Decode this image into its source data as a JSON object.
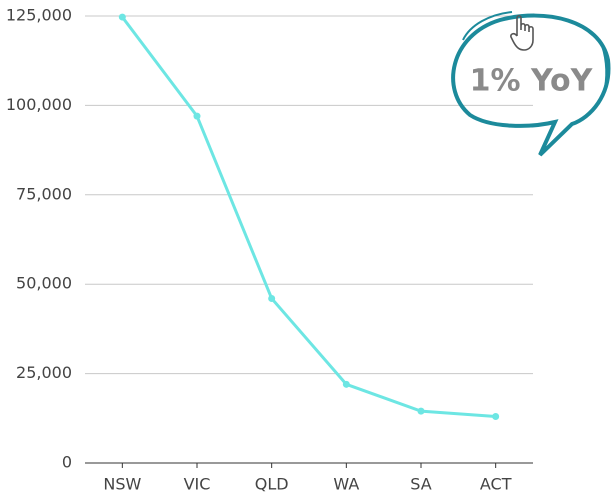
{
  "chart_data": {
    "type": "line",
    "categories": [
      "NSW",
      "VIC",
      "QLD",
      "WA",
      "SA",
      "ACT"
    ],
    "series": [
      {
        "name": "Value",
        "color": "#6de6e3",
        "values": [
          124700,
          97000,
          46000,
          22000,
          14500,
          13000
        ]
      }
    ],
    "ylim": [
      0,
      125000
    ],
    "yticks": [
      0,
      {
        "value": 25000,
        "label": "25,000"
      },
      {
        "value": 50000,
        "label": "50,000"
      },
      {
        "value": 75000,
        "label": "75,000"
      },
      {
        "value": 100000,
        "label": "100,000"
      },
      {
        "value": 125000,
        "label": "125,000"
      }
    ],
    "grid": true,
    "annotation": "1% YoY"
  }
}
